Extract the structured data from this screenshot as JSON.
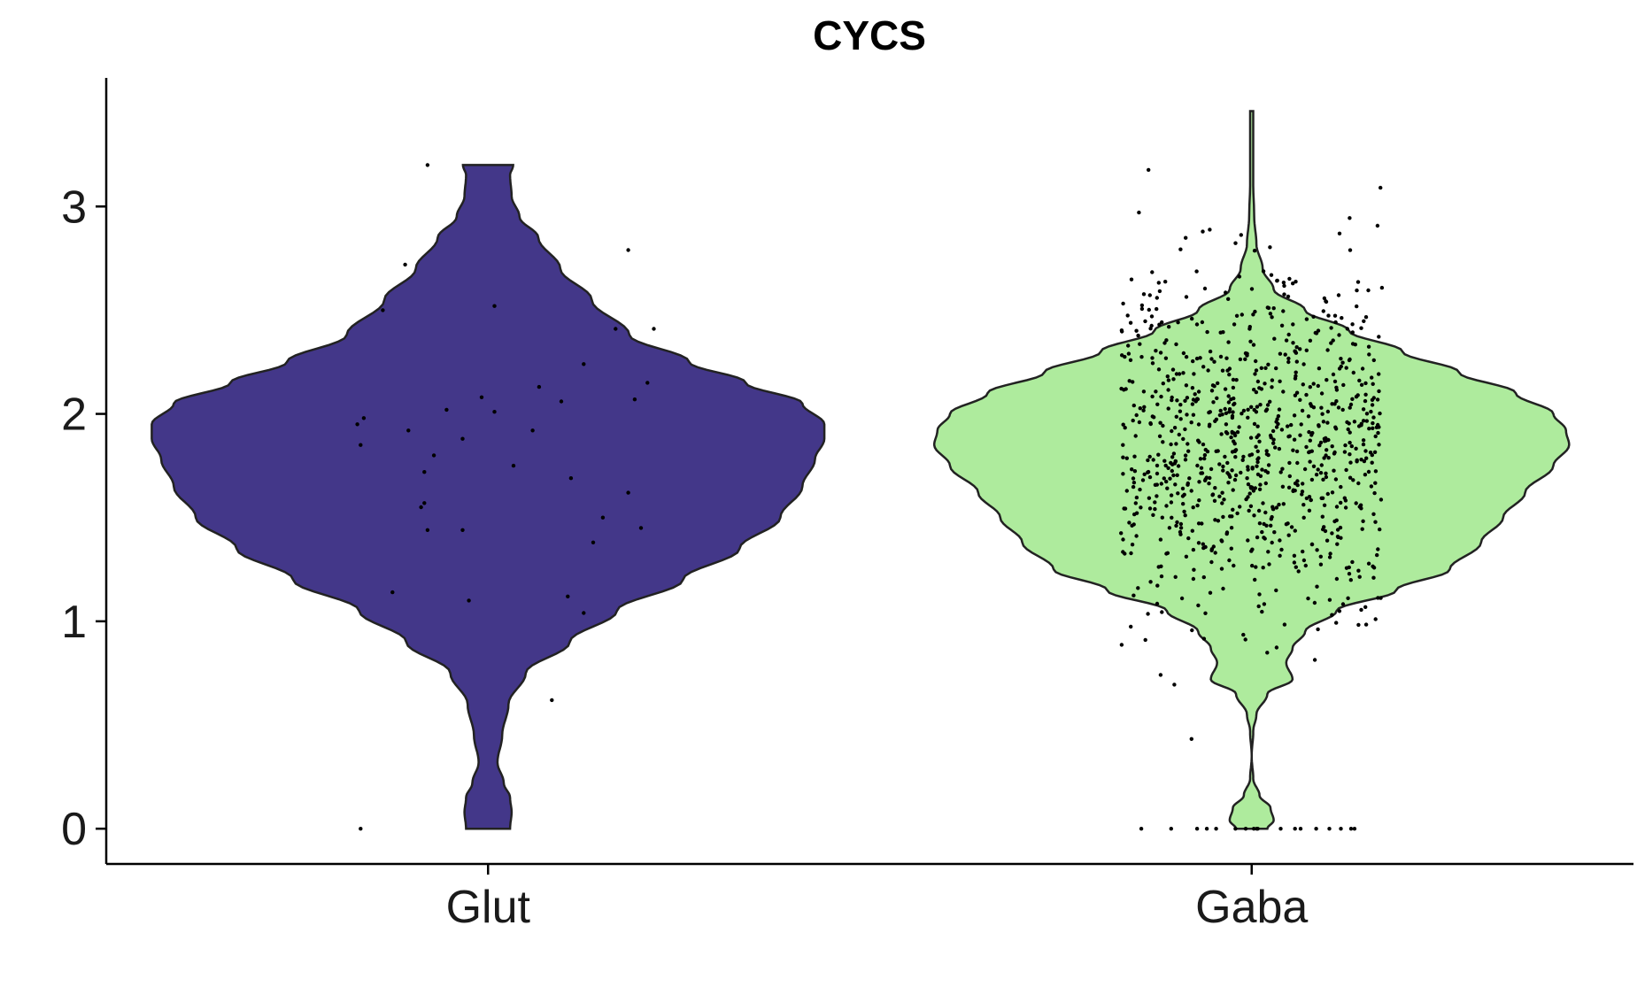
{
  "chart_data": {
    "type": "violin",
    "title": "CYCS",
    "xlabel": "",
    "ylabel": "",
    "categories": [
      "Glut",
      "Gaba"
    ],
    "ylim": [
      -0.17,
      3.62
    ],
    "yticks": [
      0,
      1,
      2,
      3
    ],
    "grid": false,
    "legend": "none",
    "series": [
      {
        "category": "Glut",
        "color": "#433789",
        "max": 3.2,
        "min": 0,
        "profile": [
          [
            0.0,
            0.07
          ],
          [
            0.08,
            0.075
          ],
          [
            0.15,
            0.07
          ],
          [
            0.22,
            0.05
          ],
          [
            0.32,
            0.03
          ],
          [
            0.45,
            0.045
          ],
          [
            0.6,
            0.065
          ],
          [
            0.75,
            0.12
          ],
          [
            0.9,
            0.26
          ],
          [
            1.05,
            0.41
          ],
          [
            1.2,
            0.62
          ],
          [
            1.35,
            0.8
          ],
          [
            1.5,
            0.93
          ],
          [
            1.65,
            1.0
          ],
          [
            1.78,
            1.04
          ],
          [
            1.88,
            1.07
          ],
          [
            1.95,
            1.07
          ],
          [
            2.05,
            1.0
          ],
          [
            2.15,
            0.82
          ],
          [
            2.25,
            0.64
          ],
          [
            2.38,
            0.45
          ],
          [
            2.55,
            0.33
          ],
          [
            2.7,
            0.23
          ],
          [
            2.85,
            0.16
          ],
          [
            2.95,
            0.1
          ],
          [
            3.05,
            0.075
          ],
          [
            3.15,
            0.07
          ],
          [
            3.2,
            0.08
          ]
        ],
        "points": [
          [
            -0.4,
            0
          ],
          [
            -0.41,
            1.95
          ],
          [
            -0.4,
            1.85
          ],
          [
            -0.39,
            1.98
          ],
          [
            -0.33,
            2.5
          ],
          [
            -0.3,
            1.14
          ],
          [
            -0.26,
            2.72
          ],
          [
            -0.25,
            1.92
          ],
          [
            -0.21,
            1.55
          ],
          [
            -0.2,
            1.72
          ],
          [
            -0.2,
            1.57
          ],
          [
            -0.19,
            1.44
          ],
          [
            -0.17,
            1.8
          ],
          [
            -0.19,
            3.2
          ],
          [
            -0.13,
            2.02
          ],
          [
            -0.08,
            1.44
          ],
          [
            -0.08,
            1.88
          ],
          [
            -0.06,
            1.1
          ],
          [
            -0.02,
            2.08
          ],
          [
            0.02,
            2.52
          ],
          [
            0.02,
            2.01
          ],
          [
            0.08,
            1.75
          ],
          [
            0.14,
            1.92
          ],
          [
            0.16,
            2.13
          ],
          [
            0.2,
            0.62
          ],
          [
            0.23,
            2.06
          ],
          [
            0.25,
            1.12
          ],
          [
            0.26,
            1.69
          ],
          [
            0.3,
            2.24
          ],
          [
            0.3,
            1.04
          ],
          [
            0.33,
            1.38
          ],
          [
            0.36,
            1.5
          ],
          [
            0.4,
            2.41
          ],
          [
            0.44,
            2.79
          ],
          [
            0.44,
            1.62
          ],
          [
            0.46,
            2.07
          ],
          [
            0.48,
            1.45
          ],
          [
            0.5,
            2.15
          ],
          [
            0.52,
            2.41
          ]
        ]
      },
      {
        "category": "Gaba",
        "color": "#aeeb9d",
        "max": 3.46,
        "min": 0,
        "profile": [
          [
            0.0,
            0.05
          ],
          [
            0.04,
            0.07
          ],
          [
            0.1,
            0.06
          ],
          [
            0.16,
            0.025
          ],
          [
            0.24,
            0.005
          ],
          [
            0.35,
            0.0
          ],
          [
            0.47,
            0.005
          ],
          [
            0.55,
            0.015
          ],
          [
            0.65,
            0.05
          ],
          [
            0.72,
            0.13
          ],
          [
            0.8,
            0.11
          ],
          [
            0.87,
            0.13
          ],
          [
            0.95,
            0.17
          ],
          [
            1.05,
            0.27
          ],
          [
            1.15,
            0.46
          ],
          [
            1.25,
            0.63
          ],
          [
            1.38,
            0.73
          ],
          [
            1.5,
            0.8
          ],
          [
            1.62,
            0.87
          ],
          [
            1.75,
            0.96
          ],
          [
            1.85,
            1.01
          ],
          [
            1.92,
            1.0
          ],
          [
            2.0,
            0.96
          ],
          [
            2.1,
            0.84
          ],
          [
            2.2,
            0.66
          ],
          [
            2.3,
            0.48
          ],
          [
            2.4,
            0.31
          ],
          [
            2.5,
            0.17
          ],
          [
            2.6,
            0.07
          ],
          [
            2.7,
            0.035
          ],
          [
            2.82,
            0.015
          ],
          [
            2.95,
            0.008
          ],
          [
            3.1,
            0.005
          ],
          [
            3.3,
            0.005
          ],
          [
            3.46,
            0.005
          ]
        ]
      }
    ]
  }
}
